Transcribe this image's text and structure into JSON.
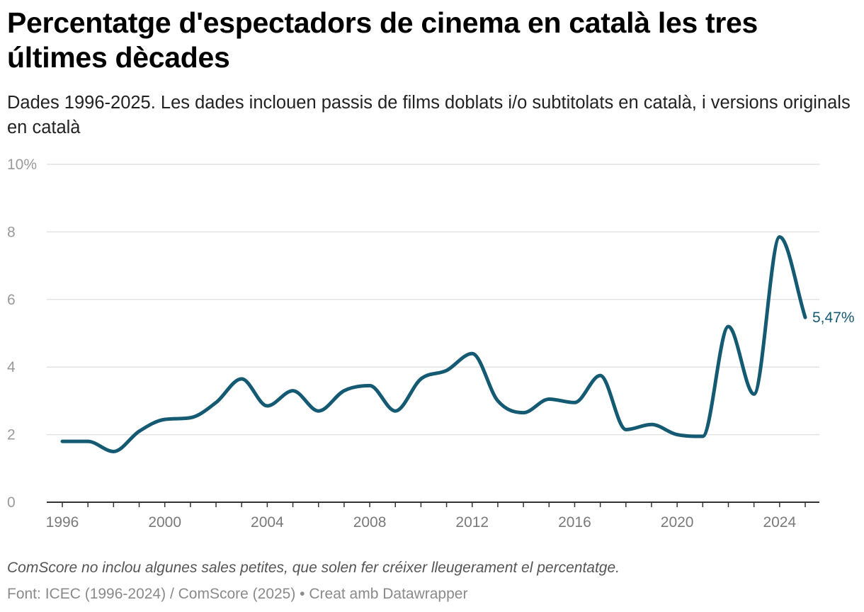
{
  "header": {
    "title": "Percentatge d'espectadors de cinema en català les tres últimes dècades",
    "subtitle": "Dades 1996-2025. Les dades inclouen passis de films doblats i/o subtitolats en català, i versions originals en català"
  },
  "footer": {
    "note": "ComScore no inclou algunes sales petites, que solen fer créixer lleugerament el percentatge.",
    "source": "Font: ICEC (1996-2024) / ComScore (2025) • Creat amb Datawrapper"
  },
  "chart_data": {
    "type": "line",
    "title": "Percentatge d'espectadors de cinema en català les tres últimes dècades",
    "subtitle": "Dades 1996-2025. Les dades inclouen passis de films doblats i/o subtitolats en català, i versions originals en català",
    "xlabel": "",
    "ylabel": "",
    "x": [
      1996,
      1997,
      1998,
      1999,
      2000,
      2001,
      2002,
      2003,
      2004,
      2005,
      2006,
      2007,
      2008,
      2009,
      2010,
      2011,
      2012,
      2013,
      2014,
      2015,
      2016,
      2017,
      2018,
      2019,
      2020,
      2021,
      2022,
      2023,
      2024,
      2025
    ],
    "series": [
      {
        "values": [
          1.8,
          1.8,
          1.5,
          2.1,
          2.45,
          2.5,
          2.95,
          3.65,
          2.85,
          3.3,
          2.7,
          3.3,
          3.45,
          2.7,
          3.65,
          3.9,
          4.4,
          3.0,
          2.65,
          3.05,
          2.95,
          3.75,
          2.15,
          2.3,
          2.0,
          1.95,
          5.2,
          3.2,
          7.85,
          5.47
        ],
        "color": "#155a73"
      }
    ],
    "xlim": [
      1996,
      2025
    ],
    "ylim": [
      0,
      10
    ],
    "y_ticks": [
      0,
      2,
      4,
      6,
      8,
      10
    ],
    "y_tick_labels": [
      "0",
      "2",
      "4",
      "6",
      "8",
      "10%"
    ],
    "x_ticks": [
      1996,
      2000,
      2004,
      2008,
      2012,
      2016,
      2020,
      2024
    ],
    "x_tick_labels": [
      "1996",
      "2000",
      "2004",
      "2008",
      "2012",
      "2016",
      "2020",
      "2024"
    ],
    "end_label": "5,47%",
    "grid": true
  }
}
